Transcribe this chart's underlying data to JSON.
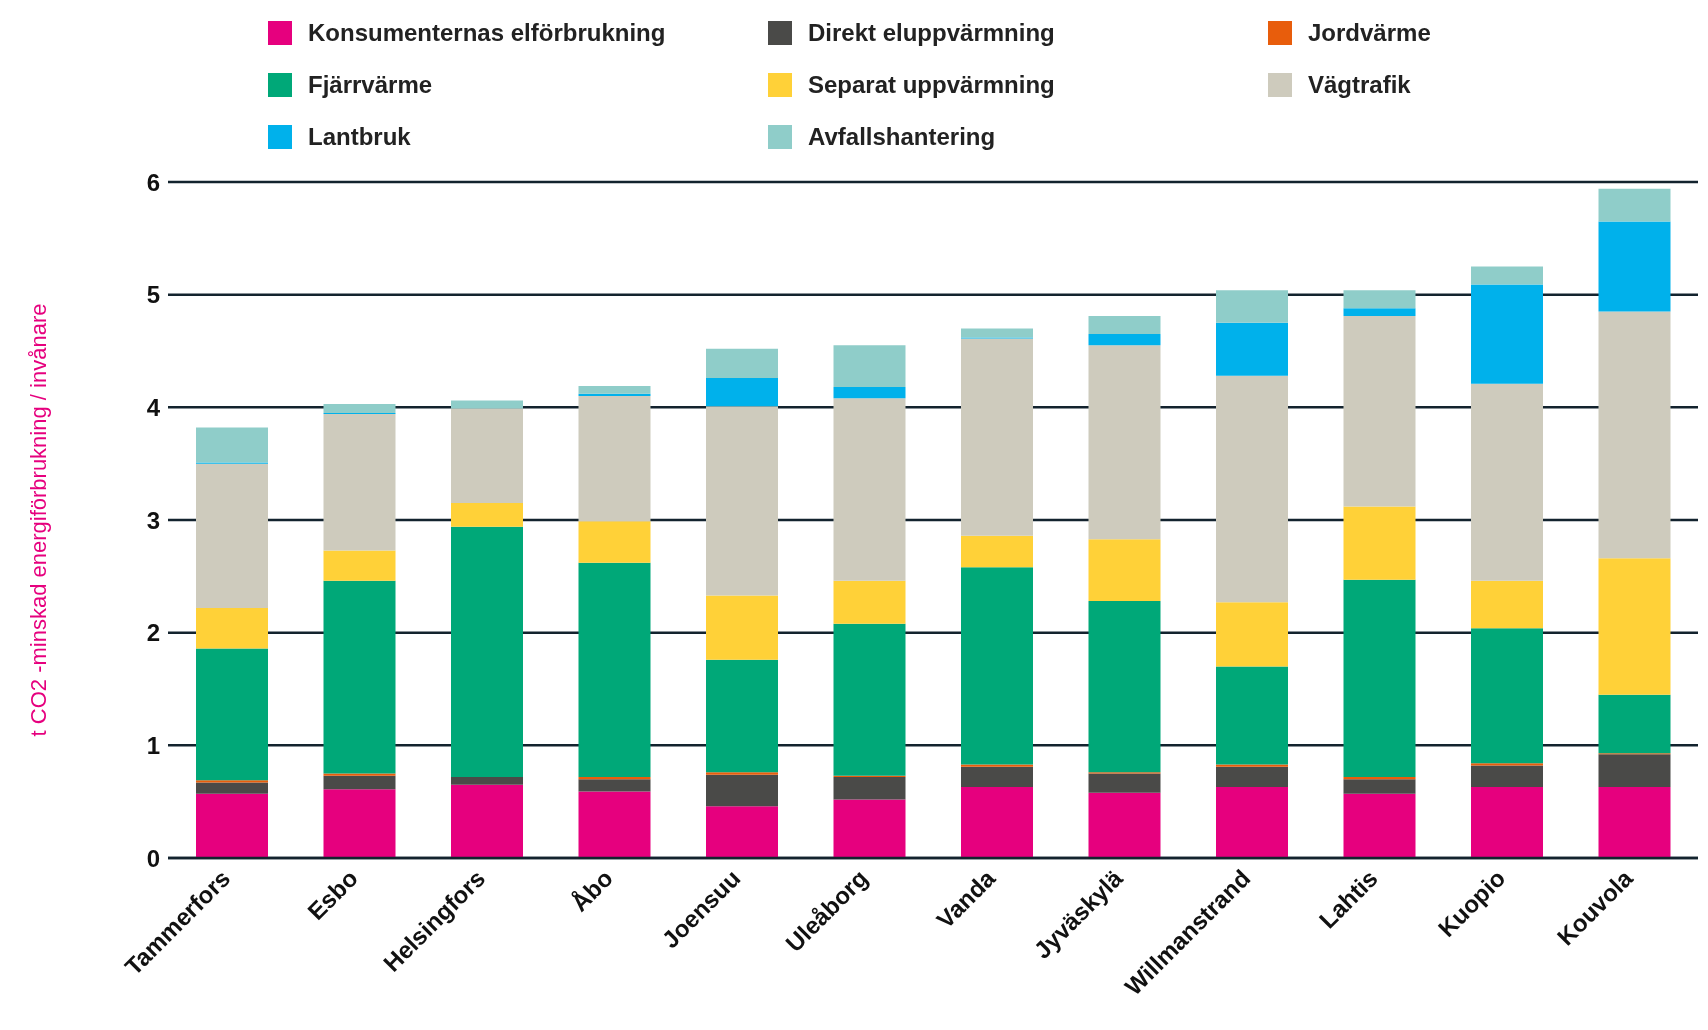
{
  "chart_data": {
    "type": "bar",
    "stacked": true,
    "ylabel": "t CO2 -minskad energiförbrukning / invånare",
    "categories": [
      "Tammerfors",
      "Esbo",
      "Helsingfors",
      "Åbo",
      "Joensuu",
      "Uleåborg",
      "Vanda",
      "Jyväskylä",
      "Willmanstrand",
      "Lahtis",
      "Kuopio",
      "Kouvola"
    ],
    "series": [
      {
        "name": "Konsumenternas elförbrukning",
        "color": "#e6007e",
        "values": [
          0.57,
          0.61,
          0.65,
          0.59,
          0.46,
          0.52,
          0.63,
          0.58,
          0.63,
          0.57,
          0.63,
          0.63
        ]
      },
      {
        "name": "Direkt eluppvärmning",
        "color": "#4a4a48",
        "values": [
          0.1,
          0.12,
          0.07,
          0.11,
          0.28,
          0.2,
          0.18,
          0.17,
          0.18,
          0.13,
          0.19,
          0.29
        ]
      },
      {
        "name": "Jordvärme",
        "color": "#e85d0c",
        "values": [
          0.02,
          0.02,
          0,
          0.02,
          0.02,
          0.01,
          0.02,
          0.01,
          0.02,
          0.02,
          0.02,
          0.01
        ]
      },
      {
        "name": "Fjärrvärme",
        "color": "#00a878",
        "values": [
          1.17,
          1.71,
          2.22,
          1.9,
          1.0,
          1.35,
          1.75,
          1.52,
          0.87,
          1.75,
          1.2,
          0.52
        ]
      },
      {
        "name": "Separat uppvärmning",
        "color": "#ffd138",
        "values": [
          0.36,
          0.27,
          0.21,
          0.37,
          0.57,
          0.38,
          0.28,
          0.55,
          0.57,
          0.65,
          0.42,
          1.21
        ]
      },
      {
        "name": "Vägtrafik",
        "color": "#cecbbd",
        "values": [
          1.28,
          1.21,
          0.84,
          1.11,
          1.68,
          1.62,
          1.75,
          1.72,
          2.01,
          1.69,
          1.75,
          2.19
        ]
      },
      {
        "name": "Lantbruk",
        "color": "#00b1eb",
        "values": [
          0.01,
          0.01,
          0,
          0.02,
          0.25,
          0.1,
          0.01,
          0.1,
          0.47,
          0.07,
          0.88,
          0.8
        ]
      },
      {
        "name": "Avfallshantering",
        "color": "#8fcdc9",
        "values": [
          0.31,
          0.08,
          0.07,
          0.07,
          0.26,
          0.37,
          0.08,
          0.16,
          0.29,
          0.16,
          0.16,
          0.29
        ]
      }
    ],
    "ylim": [
      0,
      6
    ],
    "yticks": [
      0,
      1,
      2,
      3,
      4,
      5,
      6
    ],
    "grid": "y",
    "legend": "top"
  }
}
